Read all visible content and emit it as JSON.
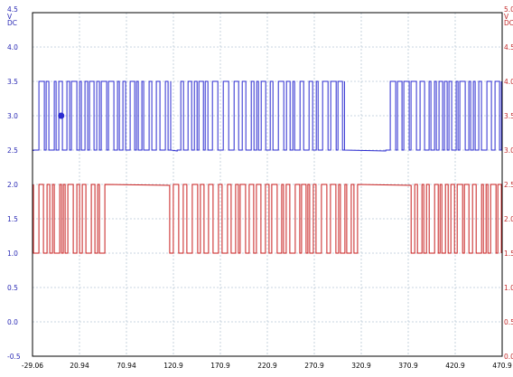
{
  "colors": {
    "left_axis": "#2b2bb5",
    "right_axis": "#c42b2b",
    "blue_trace": "#2b2bd0",
    "red_trace": "#c81e1e",
    "grid": "#b9c9d6",
    "frame": "#000000"
  },
  "chart_data": {
    "type": "line",
    "title": "",
    "grid": true,
    "x": {
      "ticks": [
        "-29.06",
        "20.94",
        "70.94",
        "120.9",
        "170.9",
        "220.9",
        "270.9",
        "320.9",
        "370.9",
        "420.9",
        "470.9"
      ],
      "lim": [
        -29.06,
        470.9
      ]
    },
    "y_left": {
      "unit_lines": [
        "V",
        "DC"
      ],
      "ticks": [
        "4.5",
        "4.0",
        "3.5",
        "3.0",
        "2.5",
        "2.0",
        "1.5",
        "1.0",
        "0.5",
        "0.0",
        "-0.5"
      ],
      "lim": [
        -0.5,
        4.5
      ]
    },
    "y_right": {
      "unit_lines": [
        "V",
        "DC"
      ],
      "ticks": [
        "5.0",
        "4.5",
        "4.0",
        "3.5",
        "3.0",
        "2.5",
        "2.0",
        "1.5",
        "1.0",
        "0.5",
        "0.0"
      ],
      "lim": [
        0.0,
        5.0
      ]
    },
    "series": [
      {
        "axis": "left",
        "color": "blue",
        "high": 3.5,
        "low": 2.5,
        "idle_level": 2.5,
        "bursts": [
          [
            -28,
            118
          ],
          [
            125,
            303
          ],
          [
            347,
            470
          ]
        ],
        "marker": {
          "x": 1.5,
          "y": 3.0
        }
      },
      {
        "axis": "right",
        "color": "red",
        "high": 2.5,
        "low": 1.5,
        "idle_level": 2.5,
        "bursts": [
          [
            -28,
            48
          ],
          [
            117,
            317
          ],
          [
            374,
            470
          ]
        ]
      }
    ]
  }
}
